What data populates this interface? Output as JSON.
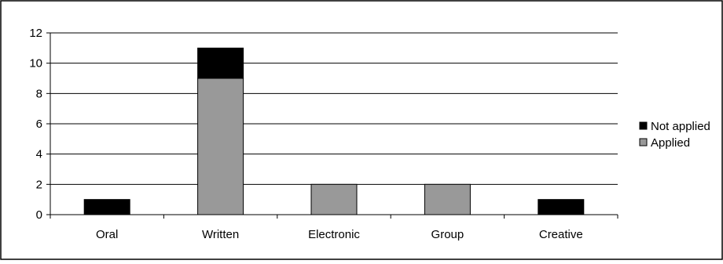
{
  "chart_data": {
    "type": "bar",
    "stacked": true,
    "categories": [
      "Oral",
      "Written",
      "Electronic",
      "Group",
      "Creative"
    ],
    "series": [
      {
        "name": "Applied",
        "values": [
          0,
          9,
          2,
          2,
          0
        ],
        "color": "#999999"
      },
      {
        "name": "Not applied",
        "values": [
          1,
          2,
          0,
          0,
          1
        ],
        "color": "#000000"
      }
    ],
    "ylim": [
      0,
      12
    ],
    "yticks": [
      0,
      2,
      4,
      6,
      8,
      10,
      12
    ],
    "grid": true,
    "legend_position": "right",
    "legend_order": [
      "Not applied",
      "Applied"
    ],
    "colors": {
      "frame": "#000000",
      "grid": "#000000",
      "background": "#ffffff"
    }
  }
}
